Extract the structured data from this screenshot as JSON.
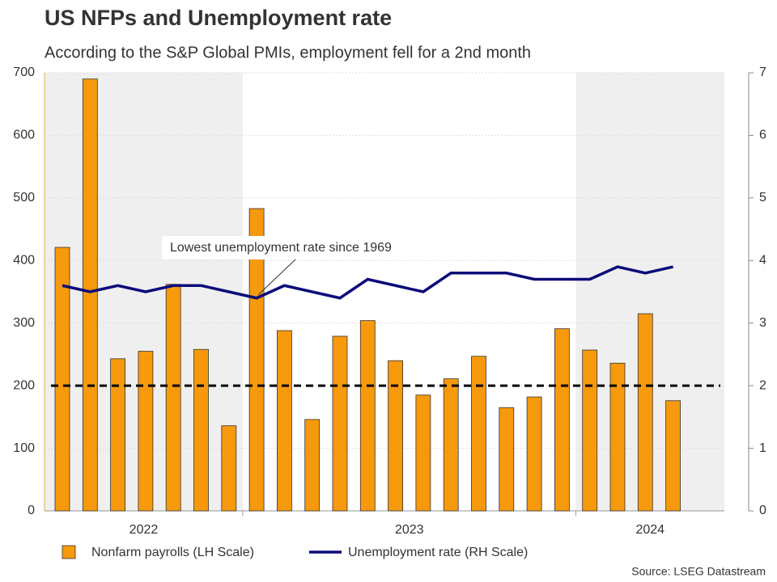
{
  "chart_data": {
    "type": "bar_line",
    "title": "US NFPs and Unemployment rate",
    "subtitle": "According to the S&P Global PMIs, employment fell for a 2nd month",
    "source": "Source: LSEG Datastream",
    "annotation": {
      "text": "Lowest unemployment rate since 1969",
      "index": 7
    },
    "categories": [
      null,
      null,
      null,
      null,
      null,
      null,
      null,
      null,
      null,
      null,
      null,
      null,
      null,
      null,
      null,
      null,
      null,
      null,
      null,
      null,
      null,
      null,
      null
    ],
    "periods": [
      {
        "label": "2022",
        "count": 7,
        "shaded": true
      },
      {
        "label": "2023",
        "count": 12,
        "shaded": false
      },
      {
        "label": "2024",
        "count": 4,
        "shaded": true
      }
    ],
    "series": [
      {
        "name": "Nonfarm payrolls (LH Scale)",
        "color": "#f7990c",
        "kind": "bar",
        "values": [
          421,
          690,
          243,
          255,
          362,
          258,
          136,
          483,
          288,
          146,
          279,
          304,
          240,
          185,
          211,
          247,
          165,
          182,
          291,
          257,
          236,
          315,
          176
        ]
      },
      {
        "name": "Unemployment rate (RH Scale)",
        "color": "#0b0b7a",
        "kind": "line",
        "axis": "y2",
        "values": [
          3.6,
          3.5,
          3.6,
          3.5,
          3.6,
          3.6,
          3.5,
          3.4,
          3.6,
          3.5,
          3.4,
          3.7,
          3.6,
          3.5,
          3.8,
          3.8,
          3.8,
          3.7,
          3.7,
          3.7,
          3.9,
          3.8,
          3.9
        ]
      }
    ],
    "reference_line": 200,
    "ylim": [
      0,
      700
    ],
    "yticks": [
      0,
      100,
      200,
      300,
      400,
      500,
      600,
      700
    ],
    "y2lim": [
      0,
      7
    ],
    "y2ticks": [
      0,
      1,
      2,
      3,
      4,
      5,
      6,
      7
    ],
    "grid": true
  }
}
